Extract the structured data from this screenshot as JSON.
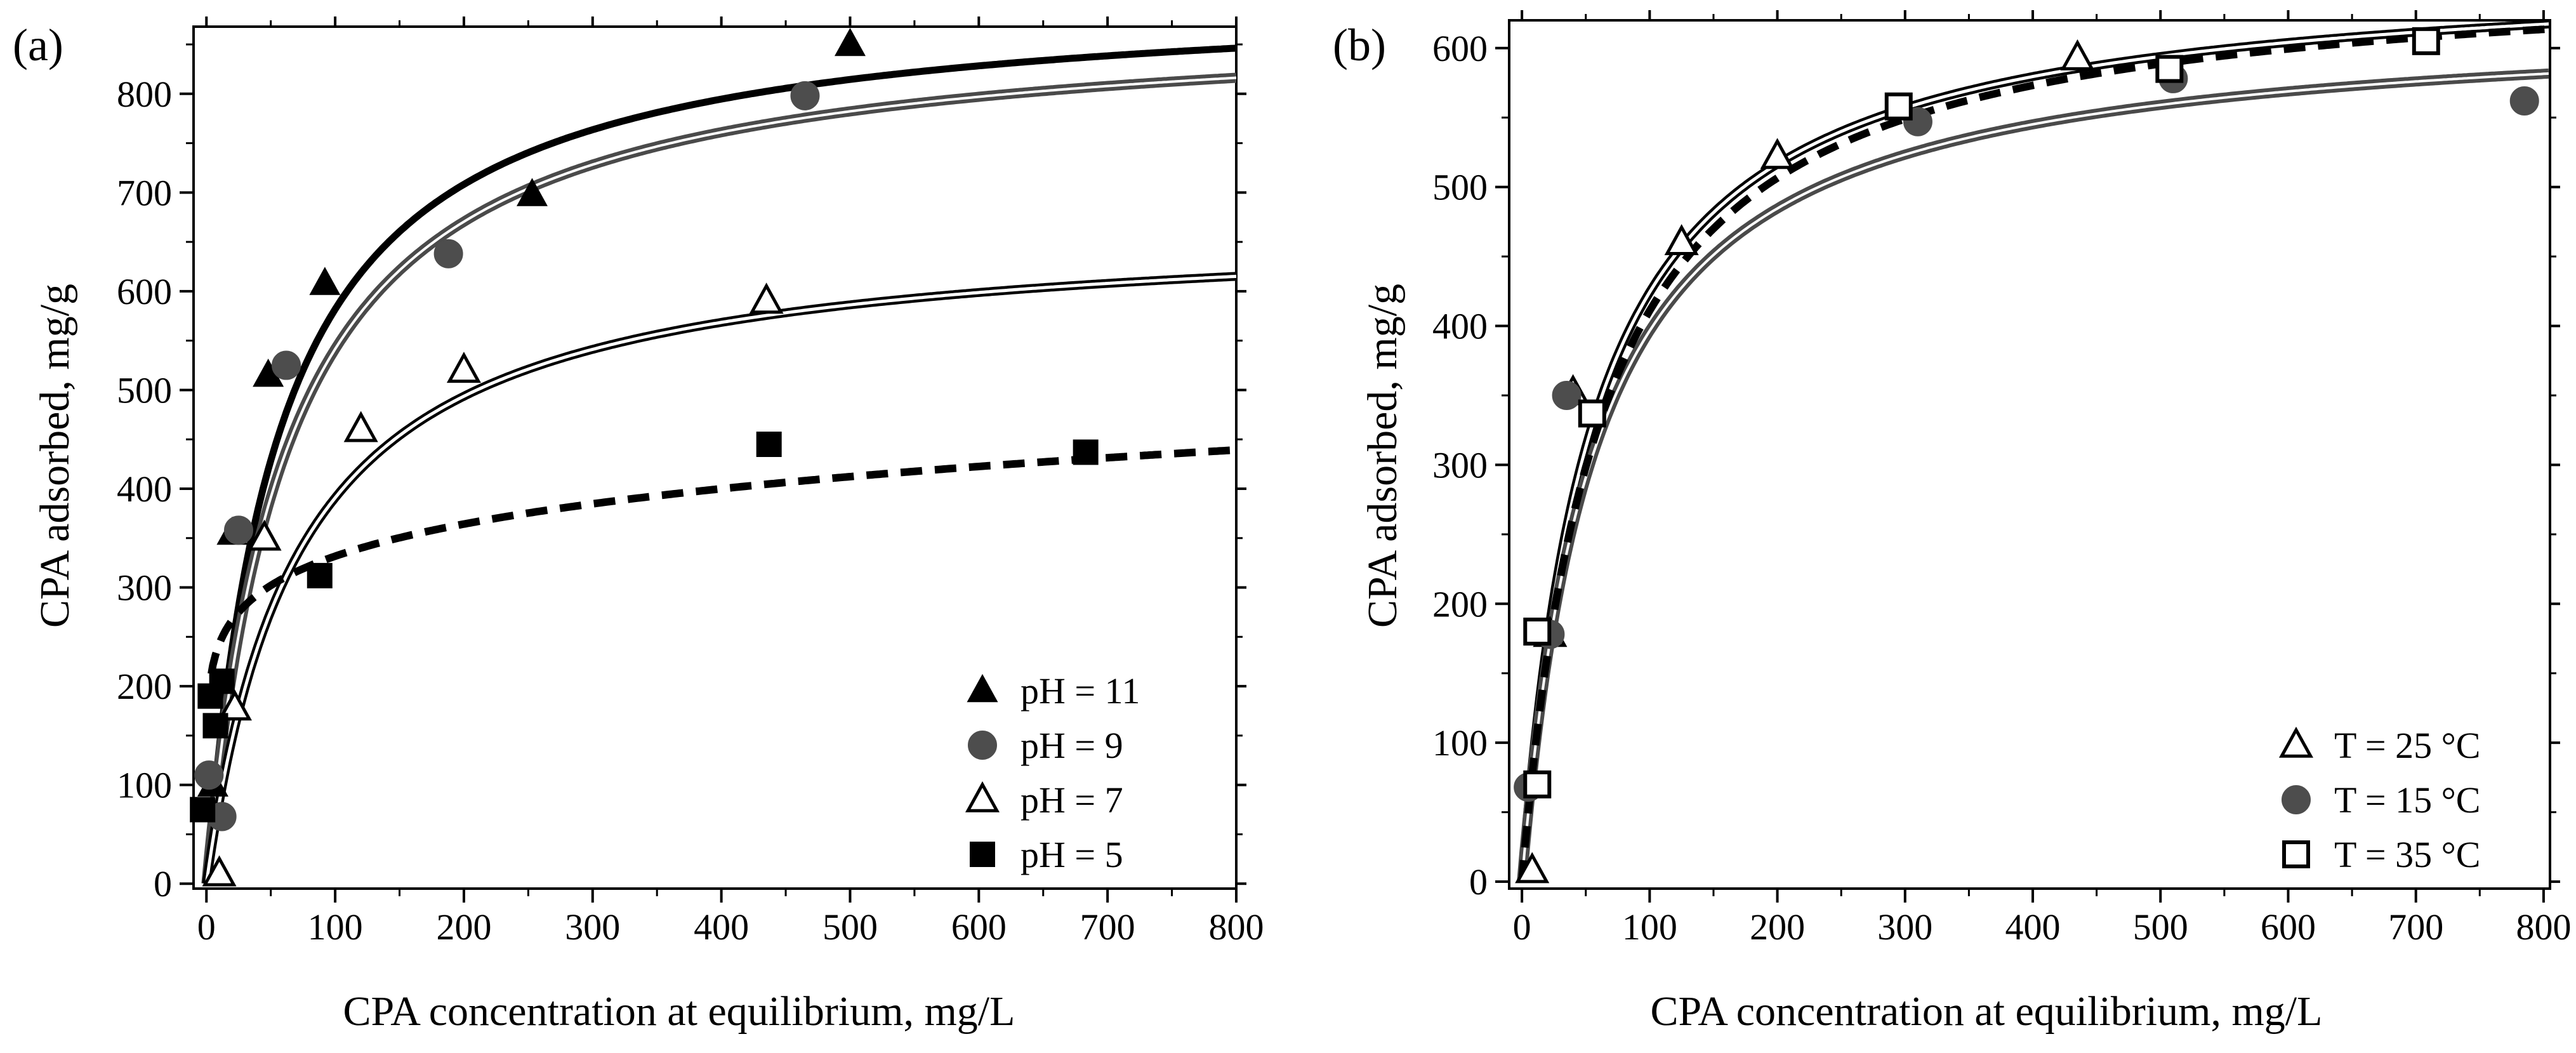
{
  "colors": {
    "black": "#000000",
    "dark_gray": "#4a4a4a",
    "gray_fill": "#4d4d4d",
    "white": "#ffffff"
  },
  "chart_data": [
    {
      "type": "scatter",
      "panel_label": "(a)",
      "title": "",
      "xlabel": "CPA concentration at equilibrium, mg/L",
      "ylabel": "CPA adsorbed, mg/g",
      "xlim": [
        -10,
        800
      ],
      "ylim": [
        -5,
        868
      ],
      "xticks": [
        0,
        100,
        200,
        300,
        400,
        500,
        600,
        700,
        800
      ],
      "yticks": [
        0,
        100,
        200,
        300,
        400,
        500,
        600,
        700,
        800
      ],
      "legend_position": "bottom-right",
      "series": [
        {
          "name": "pH = 11",
          "marker": "filled-triangle",
          "points": [
            [
              5,
              100
            ],
            [
              20,
              355
            ],
            [
              48,
              515
            ],
            [
              92,
              608
            ],
            [
              253,
              698
            ],
            [
              500,
              850
            ]
          ],
          "fit": {
            "model": "langmuir",
            "qmax": 905,
            "K": 0.018,
            "style": "thick-black"
          }
        },
        {
          "name": "pH = 9",
          "marker": "filled-circle",
          "points": [
            [
              2,
              110
            ],
            [
              12,
              68
            ],
            [
              25,
              358
            ],
            [
              62,
              525
            ],
            [
              188,
              638
            ],
            [
              465,
              798
            ]
          ],
          "fit": {
            "model": "langmuir",
            "qmax": 880,
            "K": 0.016,
            "style": "gray-double"
          }
        },
        {
          "name": "pH = 7",
          "marker": "open-triangle",
          "points": [
            [
              10,
              10
            ],
            [
              22,
              178
            ],
            [
              45,
              350
            ],
            [
              120,
              460
            ],
            [
              200,
              520
            ],
            [
              435,
              590
            ]
          ],
          "fit": {
            "model": "langmuir",
            "qmax": 670,
            "K": 0.014,
            "style": "double-black"
          }
        },
        {
          "name": "pH = 5",
          "marker": "filled-square",
          "points": [
            [
              -3,
              75
            ],
            [
              3,
              190
            ],
            [
              7,
              160
            ],
            [
              12,
              205
            ],
            [
              88,
              312
            ],
            [
              437,
              445
            ],
            [
              683,
              437
            ]
          ],
          "fit": {
            "model": "freundlich",
            "Kf": 178,
            "n": 7.4,
            "style": "dashed-black"
          }
        }
      ]
    },
    {
      "type": "scatter",
      "panel_label": "(b)",
      "title": "",
      "xlabel": "CPA concentration at equilibrium, mg/L",
      "ylabel": "CPA adsorbed, mg/g",
      "xlim": [
        -10,
        805
      ],
      "ylim": [
        -5,
        620
      ],
      "xticks": [
        0,
        100,
        200,
        300,
        400,
        500,
        600,
        700,
        800
      ],
      "yticks": [
        0,
        100,
        200,
        300,
        400,
        500,
        600
      ],
      "legend_position": "bottom-right",
      "series": [
        {
          "name": "T = 25 °C",
          "marker": "open-triangle",
          "points": [
            [
              8,
              8
            ],
            [
              22,
              178
            ],
            [
              40,
              352
            ],
            [
              125,
              460
            ],
            [
              200,
              522
            ],
            [
              435,
              593
            ]
          ],
          "fit": {
            "model": "langmuir",
            "qmax": 660,
            "K": 0.018,
            "style": "double-black"
          }
        },
        {
          "name": "T = 15 °C",
          "marker": "filled-circle",
          "points": [
            [
              5,
              68
            ],
            [
              22,
              178
            ],
            [
              35,
              350
            ],
            [
              310,
              547
            ],
            [
              510,
              578
            ],
            [
              785,
              562
            ]
          ],
          "fit": {
            "model": "langmuir",
            "qmax": 623,
            "K": 0.0175,
            "style": "gray-double"
          }
        },
        {
          "name": "T = 35 °C",
          "marker": "open-square",
          "points": [
            [
              12,
              70
            ],
            [
              12,
              180
            ],
            [
              55,
              337
            ],
            [
              295,
              558
            ],
            [
              507,
              585
            ],
            [
              708,
              605
            ]
          ],
          "fit": {
            "model": "langmuir",
            "qmax": 660,
            "K": 0.0165,
            "style": "dashed-black"
          }
        }
      ]
    }
  ]
}
